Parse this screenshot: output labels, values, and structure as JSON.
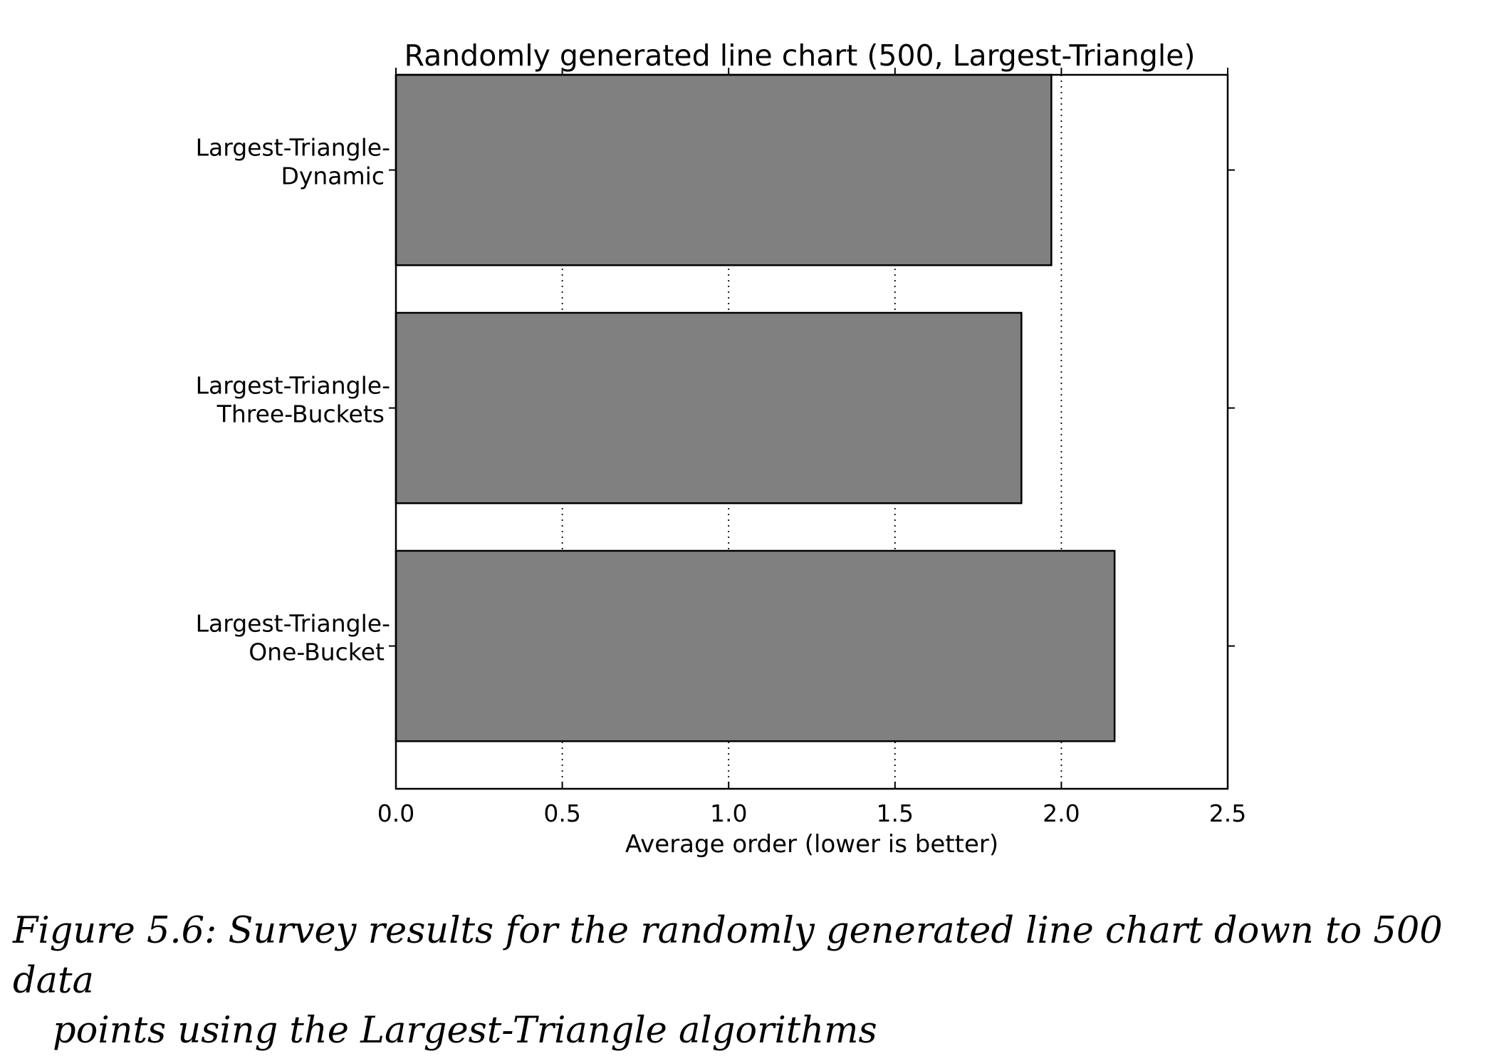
{
  "chart_data": {
    "type": "bar",
    "orientation": "horizontal",
    "title": "Randomly generated line chart (500, Largest-Triangle)",
    "xlabel": "Average order (lower is better)",
    "ylabel": "",
    "categories": [
      [
        "Largest-Triangle-",
        "Dynamic"
      ],
      [
        "Largest-Triangle-",
        "Three-Buckets"
      ],
      [
        "Largest-Triangle-",
        "One-Bucket"
      ]
    ],
    "values": [
      1.97,
      1.88,
      2.16
    ],
    "xlim": [
      0.0,
      2.5
    ],
    "xticks": [
      "0.0",
      "0.5",
      "1.0",
      "1.5",
      "2.0",
      "2.5"
    ],
    "grid": "vertical dotted",
    "bar_color": "#808080",
    "edge_color": "#000000"
  },
  "caption": {
    "line1": "Figure 5.6: Survey results for the randomly generated line chart down to 500 data",
    "line2": "points using the Largest-Triangle algorithms"
  }
}
